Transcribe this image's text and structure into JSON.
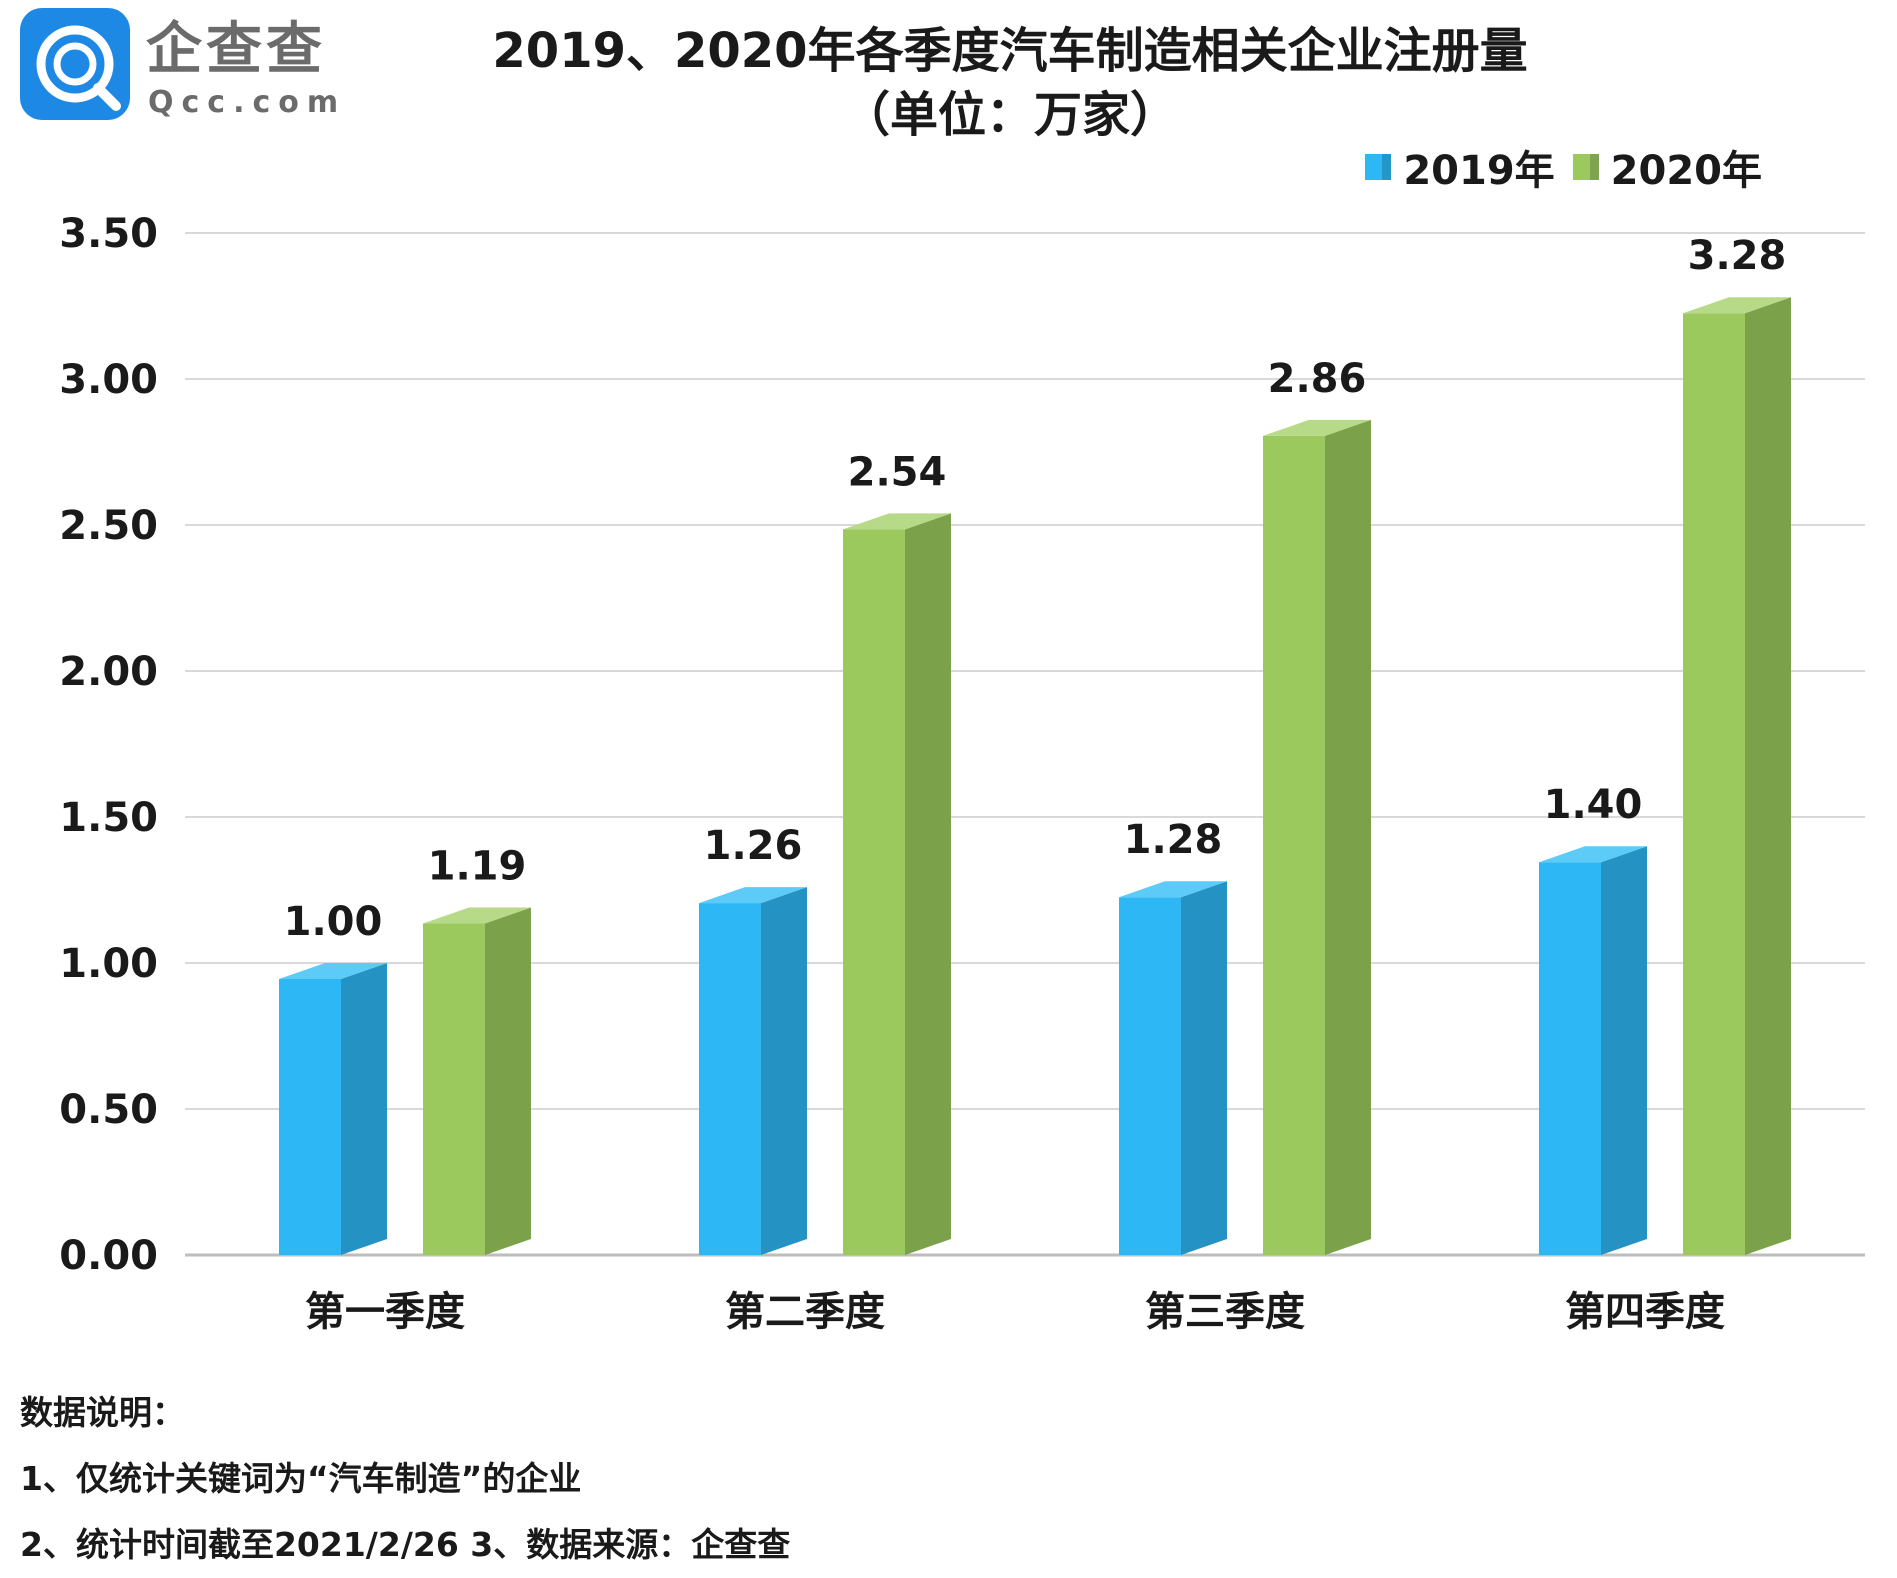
{
  "logo": {
    "name": "企查查",
    "domain": "Qcc.com",
    "icon": "qcc-magnifier-logo-icon",
    "color": "#1E88E5"
  },
  "chart_data": {
    "type": "bar",
    "title": "2019、2020年各季度汽车制造相关企业注册量",
    "subtitle": "（单位：万家）",
    "categories": [
      "第一季度",
      "第二季度",
      "第三季度",
      "第四季度"
    ],
    "series": [
      {
        "name": "2019年",
        "values": [
          1.0,
          1.26,
          1.28,
          1.4
        ],
        "labels": [
          "1.00",
          "1.26",
          "1.28",
          "1.40"
        ],
        "color": "#2DB7F5",
        "side_color": "#2493C4",
        "top_color": "#5CCBF8"
      },
      {
        "name": "2020年",
        "values": [
          1.19,
          2.54,
          2.86,
          3.28
        ],
        "labels": [
          "1.19",
          "2.54",
          "2.86",
          "3.28"
        ],
        "color": "#9BC95E",
        "side_color": "#7BA24A",
        "top_color": "#B7DA88"
      }
    ],
    "ylim": [
      0,
      3.5
    ],
    "yticks": [
      "0.00",
      "0.50",
      "1.00",
      "1.50",
      "2.00",
      "2.50",
      "3.00",
      "3.50"
    ],
    "grid": true,
    "legend_position": "top-right",
    "style": "3d-column",
    "xlabel": "",
    "ylabel": ""
  },
  "notes": {
    "heading": "数据说明：",
    "line1": "1、仅统计关键词为“汽车制造”的企业",
    "line2": "2、统计时间截至2021/2/26  3、数据来源：企查查"
  }
}
